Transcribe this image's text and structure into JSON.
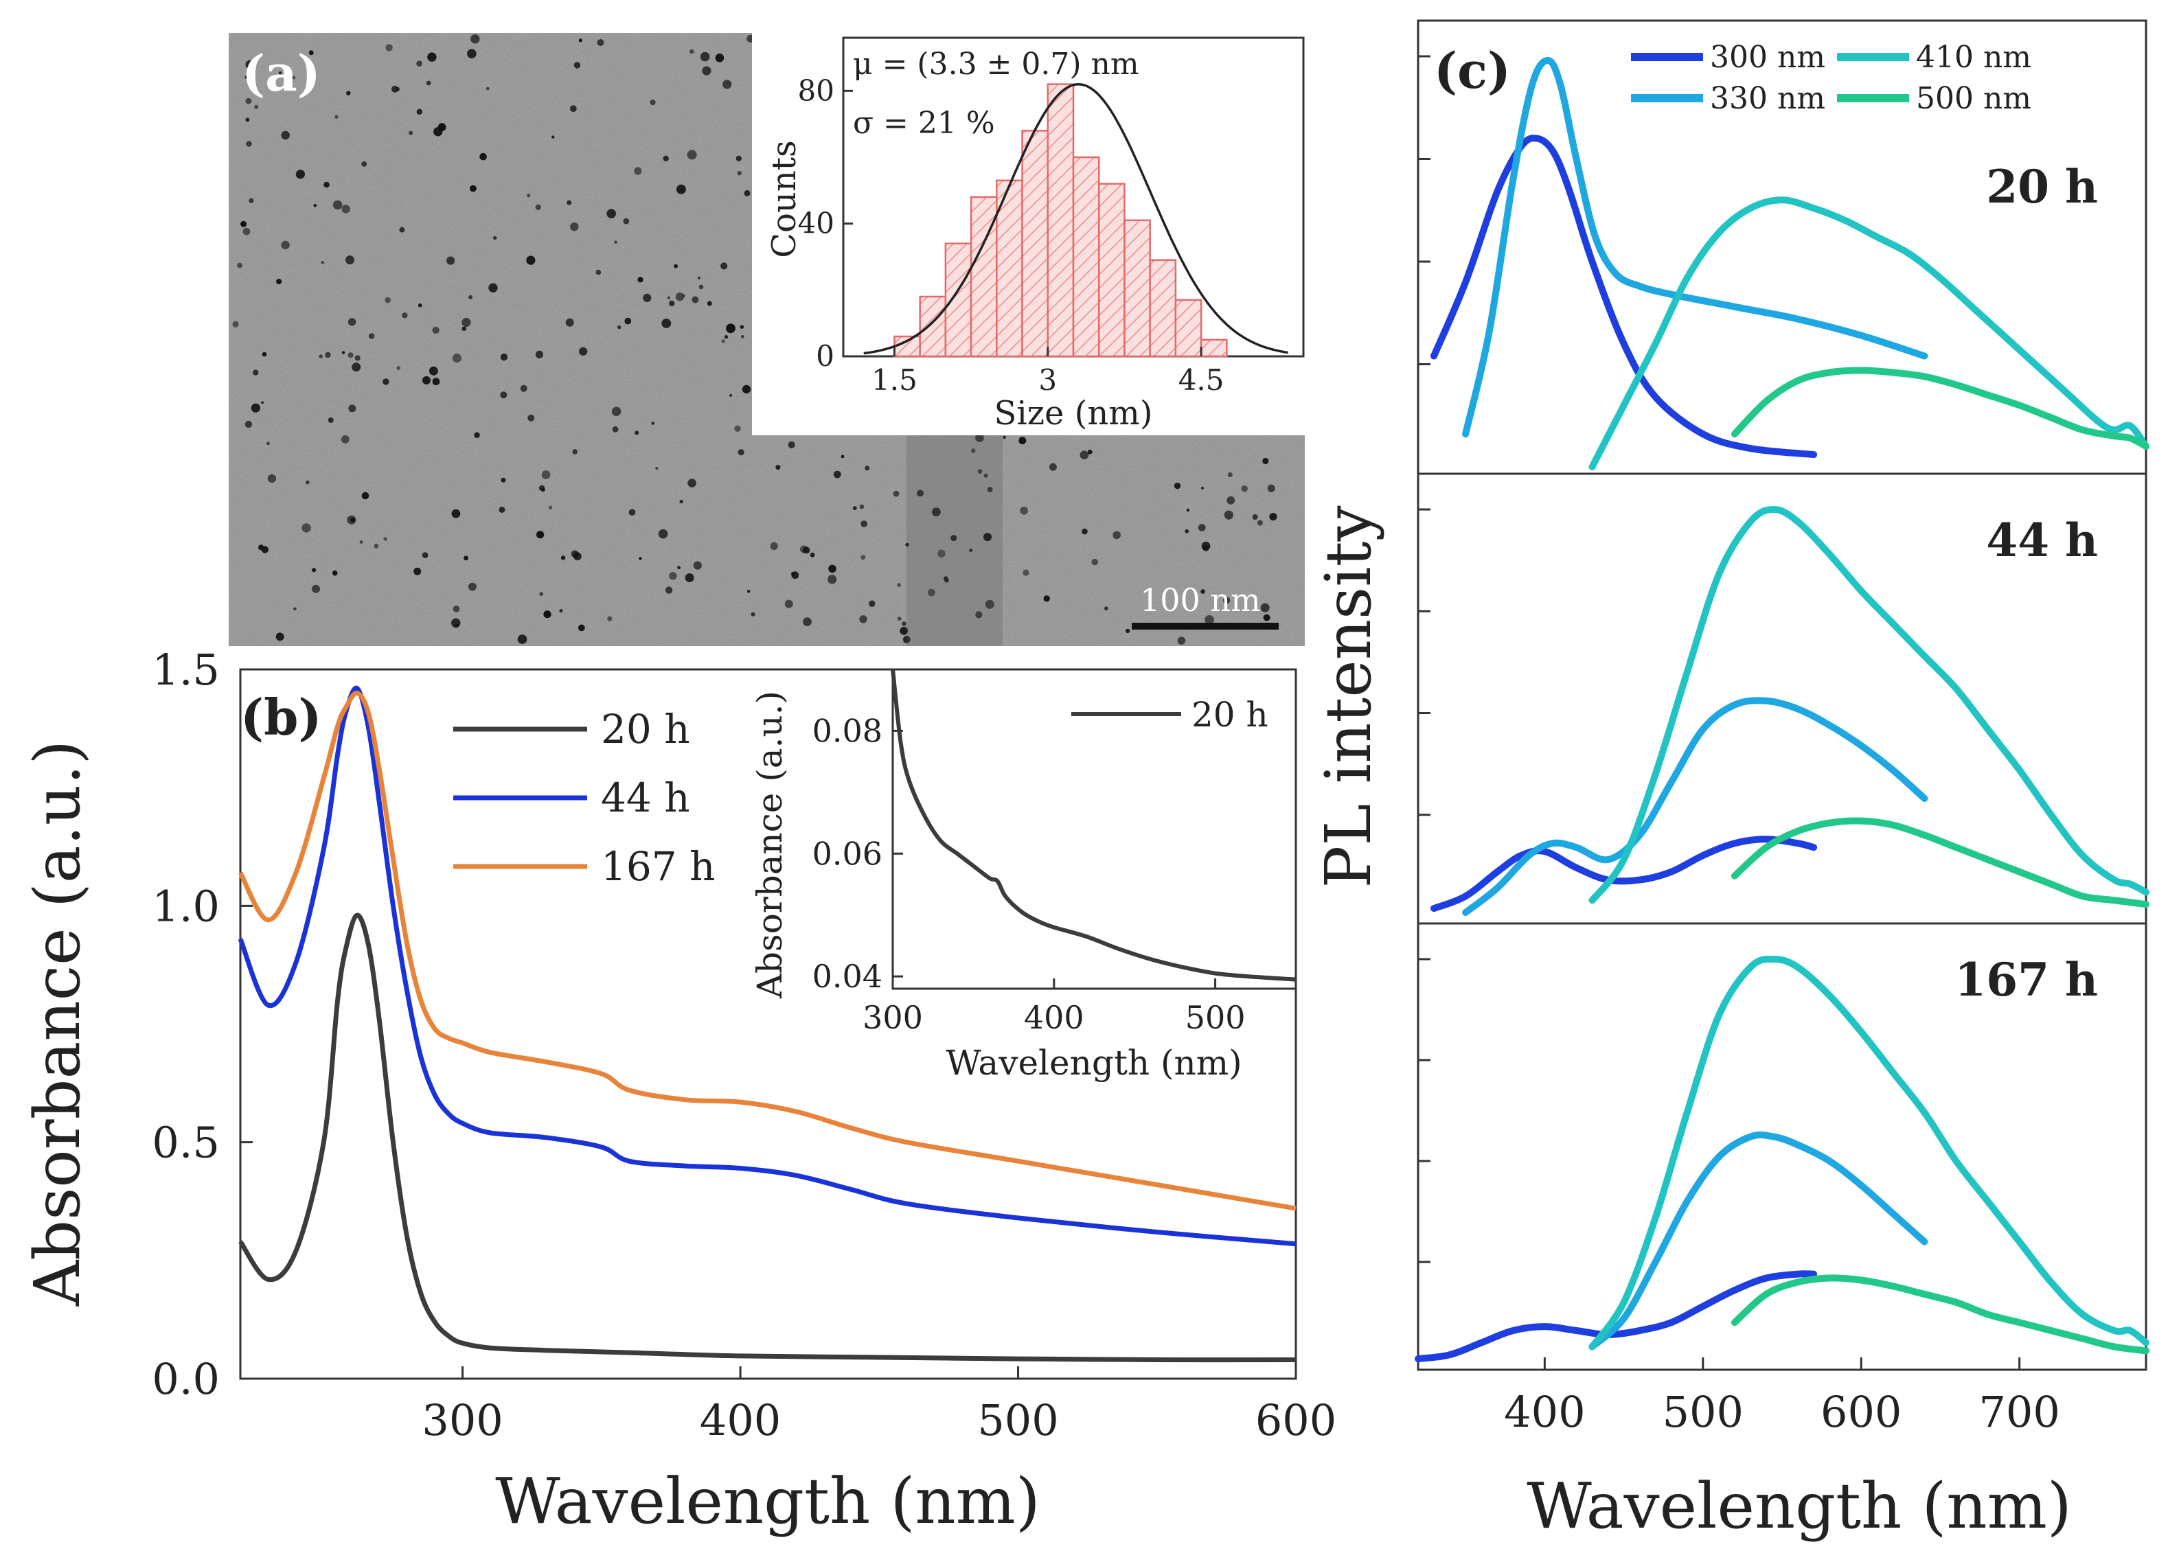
{
  "panel_a": {
    "label": "(a)",
    "scale_bar": "100 nm",
    "histogram": {
      "mu_text": "μ = (3.3 ± 0.7) nm",
      "sigma_text": "σ = 21 %",
      "xlabel": "Size (nm)",
      "ylabel": "Counts",
      "xticks": [
        "1.5",
        "3",
        "4.5"
      ],
      "yticks": [
        "0",
        "40",
        "80"
      ],
      "xlim": [
        1.0,
        5.5
      ],
      "ylim": [
        0,
        96
      ],
      "bins": [
        {
          "x0": 1.5,
          "x1": 1.75,
          "count": 6
        },
        {
          "x0": 1.75,
          "x1": 2.0,
          "count": 18
        },
        {
          "x0": 2.0,
          "x1": 2.25,
          "count": 34
        },
        {
          "x0": 2.25,
          "x1": 2.5,
          "count": 48
        },
        {
          "x0": 2.5,
          "x1": 2.75,
          "count": 53
        },
        {
          "x0": 2.75,
          "x1": 3.0,
          "count": 68
        },
        {
          "x0": 3.0,
          "x1": 3.25,
          "count": 82
        },
        {
          "x0": 3.25,
          "x1": 3.5,
          "count": 60
        },
        {
          "x0": 3.5,
          "x1": 3.75,
          "count": 52
        },
        {
          "x0": 3.75,
          "x1": 4.0,
          "count": 41
        },
        {
          "x0": 4.0,
          "x1": 4.25,
          "count": 29
        },
        {
          "x0": 4.25,
          "x1": 4.5,
          "count": 17
        },
        {
          "x0": 4.5,
          "x1": 4.75,
          "count": 5
        }
      ],
      "fit": {
        "mu": 3.3,
        "sigma": 0.7,
        "amplitude": 82
      }
    }
  },
  "chart_data": [
    {
      "id": "b",
      "type": "line",
      "label": "(b)",
      "xlabel": "Wavelength (nm)",
      "ylabel": "Absorbance (a.u.)",
      "xlim": [
        220,
        600
      ],
      "ylim": [
        0,
        1.5
      ],
      "xticks": [
        "300",
        "400",
        "500",
        "600"
      ],
      "yticks": [
        "0.0",
        "0.5",
        "1.0",
        "1.5"
      ],
      "legend_position": "top-left",
      "series": [
        {
          "name": "20 h",
          "color": "#3c3c3c",
          "x": [
            220,
            230,
            240,
            250,
            255,
            258,
            262,
            266,
            270,
            275,
            280,
            285,
            290,
            295,
            300,
            310,
            330,
            360,
            400,
            450,
            500,
            550,
            600
          ],
          "y": [
            0.29,
            0.21,
            0.27,
            0.5,
            0.8,
            0.91,
            0.98,
            0.92,
            0.76,
            0.5,
            0.3,
            0.18,
            0.12,
            0.09,
            0.075,
            0.065,
            0.06,
            0.055,
            0.048,
            0.045,
            0.042,
            0.04,
            0.04
          ]
        },
        {
          "name": "44 h",
          "color": "#1a33d8",
          "x": [
            220,
            230,
            240,
            250,
            255,
            258,
            262,
            266,
            270,
            275,
            280,
            285,
            290,
            295,
            300,
            310,
            330,
            350,
            360,
            380,
            400,
            420,
            440,
            460,
            500,
            550,
            600
          ],
          "y": [
            0.93,
            0.79,
            0.88,
            1.12,
            1.32,
            1.41,
            1.46,
            1.38,
            1.22,
            1.0,
            0.82,
            0.68,
            0.6,
            0.56,
            0.54,
            0.52,
            0.51,
            0.49,
            0.46,
            0.45,
            0.445,
            0.43,
            0.4,
            0.37,
            0.34,
            0.31,
            0.285
          ]
        },
        {
          "name": "167 h",
          "color": "#e8843a",
          "x": [
            220,
            230,
            240,
            250,
            255,
            258,
            262,
            266,
            270,
            275,
            280,
            285,
            290,
            295,
            300,
            310,
            330,
            350,
            360,
            380,
            400,
            420,
            440,
            460,
            500,
            550,
            600
          ],
          "y": [
            1.07,
            0.97,
            1.07,
            1.27,
            1.38,
            1.42,
            1.45,
            1.41,
            1.29,
            1.1,
            0.92,
            0.8,
            0.74,
            0.72,
            0.71,
            0.69,
            0.67,
            0.645,
            0.61,
            0.59,
            0.585,
            0.565,
            0.53,
            0.5,
            0.46,
            0.41,
            0.36
          ]
        }
      ],
      "inset": {
        "xlabel": "Wavelength (nm)",
        "ylabel": "Absorbance (a.u.)",
        "xlim": [
          300,
          550
        ],
        "ylim": [
          0.038,
          0.09
        ],
        "xticks": [
          "300",
          "400",
          "500"
        ],
        "yticks": [
          "0.04",
          "0.06",
          "0.08"
        ],
        "legend_position": "top-right",
        "series": [
          {
            "name": "20 h",
            "color": "#3c3c3c",
            "x": [
              300,
              305,
              310,
              320,
              330,
              340,
              350,
              360,
              365,
              370,
              380,
              390,
              400,
              420,
              440,
              460,
              480,
              500,
              520,
              550
            ],
            "y": [
              0.09,
              0.078,
              0.072,
              0.066,
              0.062,
              0.06,
              0.058,
              0.056,
              0.0555,
              0.053,
              0.0505,
              0.049,
              0.048,
              0.0465,
              0.0445,
              0.0428,
              0.0415,
              0.0405,
              0.04,
              0.0395
            ]
          }
        ]
      }
    },
    {
      "id": "c",
      "type": "line",
      "label": "(c)",
      "xlabel": "Wavelength (nm)",
      "ylabel": "PL intensity",
      "xlim": [
        320,
        780
      ],
      "xticks": [
        "400",
        "500",
        "600",
        "700"
      ],
      "legend": [
        {
          "name": "300 nm",
          "color": "#1f3ee0"
        },
        {
          "name": "330 nm",
          "color": "#1ea7e0"
        },
        {
          "name": "410 nm",
          "color": "#22c3c3"
        },
        {
          "name": "500 nm",
          "color": "#22c88a"
        }
      ],
      "legend_position": "top",
      "subplots": [
        {
          "label": "20 h",
          "ylim": [
            0,
            1.0
          ],
          "series": [
            {
              "name": "300 nm",
              "x": [
                330,
                350,
                370,
                385,
                395,
                405,
                415,
                430,
                450,
                470,
                500,
                530,
                570
              ],
              "y": [
                0.27,
                0.45,
                0.67,
                0.78,
                0.8,
                0.77,
                0.68,
                0.5,
                0.3,
                0.17,
                0.08,
                0.045,
                0.03
              ]
            },
            {
              "name": "330 nm",
              "x": [
                350,
                365,
                380,
                392,
                402,
                410,
                420,
                432,
                445,
                460,
                480,
                520,
                560,
                600,
                640
              ],
              "y": [
                0.08,
                0.33,
                0.7,
                0.93,
                0.99,
                0.93,
                0.75,
                0.56,
                0.47,
                0.44,
                0.42,
                0.39,
                0.36,
                0.32,
                0.27
              ]
            },
            {
              "name": "410 nm",
              "x": [
                430,
                450,
                470,
                490,
                510,
                530,
                550,
                570,
                590,
                610,
                630,
                650,
                670,
                690,
                710,
                730,
                750,
                760,
                770,
                780
              ],
              "y": [
                0.0,
                0.15,
                0.3,
                0.46,
                0.57,
                0.63,
                0.65,
                0.63,
                0.6,
                0.56,
                0.52,
                0.46,
                0.39,
                0.32,
                0.25,
                0.18,
                0.11,
                0.09,
                0.1,
                0.05
              ]
            },
            {
              "name": "500 nm",
              "x": [
                520,
                540,
                560,
                580,
                600,
                620,
                640,
                660,
                680,
                700,
                720,
                740,
                760,
                770,
                780
              ],
              "y": [
                0.08,
                0.16,
                0.21,
                0.23,
                0.235,
                0.23,
                0.22,
                0.2,
                0.175,
                0.15,
                0.12,
                0.09,
                0.075,
                0.07,
                0.05
              ]
            }
          ]
        },
        {
          "label": "44 h",
          "ylim": [
            0,
            1.0
          ],
          "series": [
            {
              "name": "300 nm",
              "x": [
                330,
                350,
                370,
                385,
                400,
                420,
                440,
                460,
                480,
                500,
                520,
                540,
                560,
                570
              ],
              "y": [
                0.02,
                0.05,
                0.11,
                0.15,
                0.16,
                0.12,
                0.09,
                0.09,
                0.11,
                0.15,
                0.18,
                0.19,
                0.18,
                0.17
              ]
            },
            {
              "name": "330 nm",
              "x": [
                350,
                370,
                390,
                405,
                420,
                440,
                460,
                480,
                500,
                520,
                540,
                560,
                580,
                600,
                620,
                640
              ],
              "y": [
                0.01,
                0.07,
                0.15,
                0.18,
                0.17,
                0.14,
                0.2,
                0.33,
                0.46,
                0.52,
                0.53,
                0.51,
                0.47,
                0.42,
                0.36,
                0.29
              ]
            },
            {
              "name": "410 nm",
              "x": [
                430,
                450,
                470,
                490,
                510,
                530,
                545,
                560,
                580,
                600,
                620,
                640,
                660,
                680,
                700,
                720,
                740,
                760,
                770,
                780
              ],
              "y": [
                0.04,
                0.14,
                0.35,
                0.6,
                0.84,
                0.97,
                1.0,
                0.97,
                0.89,
                0.8,
                0.72,
                0.64,
                0.56,
                0.46,
                0.36,
                0.25,
                0.15,
                0.09,
                0.08,
                0.06
              ]
            },
            {
              "name": "500 nm",
              "x": [
                520,
                540,
                560,
                580,
                600,
                620,
                640,
                660,
                680,
                700,
                720,
                740,
                760,
                780
              ],
              "y": [
                0.1,
                0.17,
                0.21,
                0.23,
                0.235,
                0.225,
                0.2,
                0.17,
                0.14,
                0.11,
                0.08,
                0.05,
                0.04,
                0.03
              ]
            }
          ]
        },
        {
          "label": "167 h",
          "ylim": [
            0,
            1.0
          ],
          "series": [
            {
              "name": "300 nm",
              "x": [
                320,
                340,
                360,
                380,
                400,
                420,
                440,
                460,
                480,
                500,
                520,
                540,
                560,
                570
              ],
              "y": [
                0.01,
                0.02,
                0.05,
                0.08,
                0.09,
                0.08,
                0.07,
                0.08,
                0.1,
                0.14,
                0.18,
                0.21,
                0.22,
                0.22
              ]
            },
            {
              "name": "330 nm",
              "x": [
                430,
                450,
                470,
                490,
                510,
                530,
                545,
                560,
                580,
                600,
                620,
                640
              ],
              "y": [
                0.04,
                0.11,
                0.25,
                0.4,
                0.51,
                0.56,
                0.56,
                0.54,
                0.5,
                0.44,
                0.37,
                0.3
              ]
            },
            {
              "name": "410 nm",
              "x": [
                430,
                450,
                470,
                490,
                510,
                530,
                545,
                560,
                580,
                600,
                620,
                640,
                660,
                680,
                700,
                720,
                740,
                760,
                770,
                780
              ],
              "y": [
                0.04,
                0.15,
                0.36,
                0.62,
                0.86,
                0.98,
                1.0,
                0.98,
                0.91,
                0.82,
                0.72,
                0.62,
                0.5,
                0.4,
                0.3,
                0.2,
                0.12,
                0.08,
                0.08,
                0.05
              ]
            },
            {
              "name": "500 nm",
              "x": [
                520,
                540,
                560,
                580,
                600,
                620,
                640,
                660,
                680,
                700,
                720,
                740,
                760,
                780
              ],
              "y": [
                0.1,
                0.17,
                0.2,
                0.21,
                0.205,
                0.19,
                0.17,
                0.15,
                0.12,
                0.1,
                0.08,
                0.06,
                0.04,
                0.03
              ]
            }
          ]
        }
      ]
    }
  ]
}
